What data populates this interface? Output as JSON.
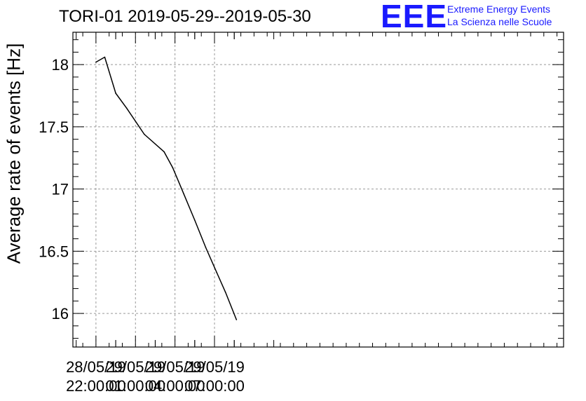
{
  "chart_data": {
    "type": "line",
    "title": "TORI-01 2019-05-29--2019-05-30",
    "ylabel": "Average rate of events [Hz]",
    "xlabel": "",
    "ylim": [
      15.73,
      18.26
    ],
    "xlim": [
      "2019-05-28 20:15:00",
      "2019-05-30 09:30:00"
    ],
    "y_ticks": [
      "16",
      "16.5",
      "17",
      "17.5",
      "18"
    ],
    "x_ticks": [
      {
        "date": "28/05/19",
        "time": "22:00:00",
        "at": "2019-05-28 22:00:00"
      },
      {
        "date": "29/05/19",
        "time": "01:00:00",
        "at": "2019-05-29 01:00:00"
      },
      {
        "date": "29/05/19",
        "time": "04:00:00",
        "at": "2019-05-29 04:00:00"
      },
      {
        "date": "29/05/19",
        "time": "07:00:00",
        "at": "2019-05-29 07:00:00"
      }
    ],
    "grid": true,
    "series": [
      {
        "color": "#000000",
        "points": [
          {
            "x": "2019-05-28 22:00:00",
            "y": 18.02
          },
          {
            "x": "2019-05-28 22:40:00",
            "y": 18.06
          },
          {
            "x": "2019-05-28 23:30:00",
            "y": 17.77
          },
          {
            "x": "2019-05-29 00:20:00",
            "y": 17.65
          },
          {
            "x": "2019-05-29 01:40:00",
            "y": 17.44
          },
          {
            "x": "2019-05-29 03:10:00",
            "y": 17.3
          },
          {
            "x": "2019-05-29 03:50:00",
            "y": 17.17
          },
          {
            "x": "2019-05-29 04:40:00",
            "y": 16.96
          },
          {
            "x": "2019-05-29 05:30:00",
            "y": 16.75
          },
          {
            "x": "2019-05-29 06:20:00",
            "y": 16.53
          },
          {
            "x": "2019-05-29 07:10:00",
            "y": 16.33
          },
          {
            "x": "2019-05-29 07:50:00",
            "y": 16.17
          },
          {
            "x": "2019-05-29 08:40:00",
            "y": 15.95
          }
        ]
      }
    ]
  },
  "logo": {
    "mark": "EEE",
    "line1": "Extreme Energy Events",
    "line2": "La Scienza nelle Scuole",
    "color": "#1a1aff"
  }
}
